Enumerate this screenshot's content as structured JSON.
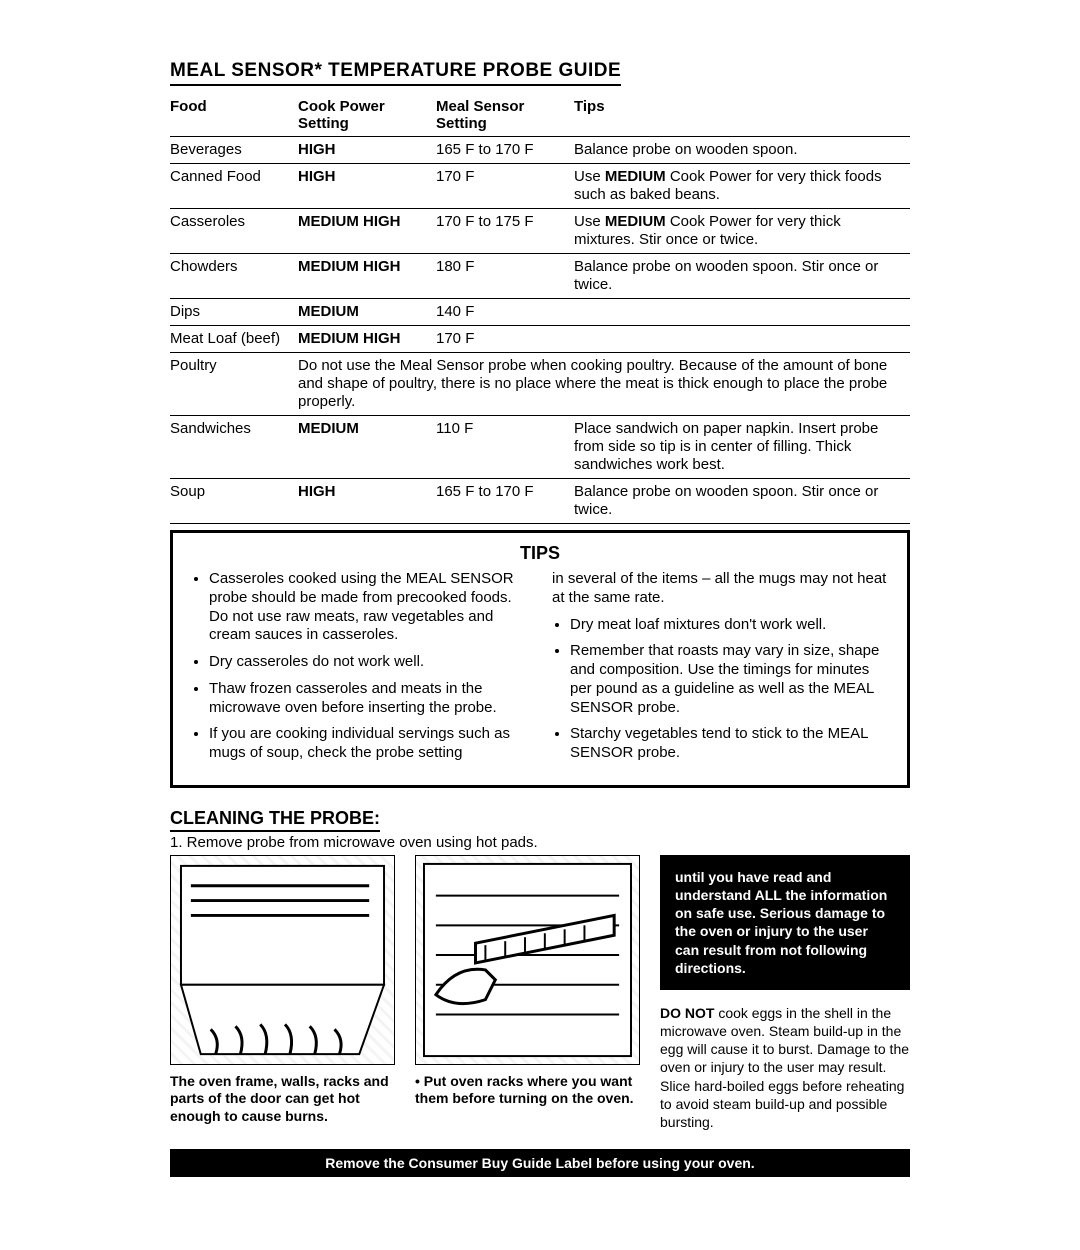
{
  "title": "MEAL SENSOR* TEMPERATURE PROBE GUIDE",
  "table": {
    "headers": [
      "Food",
      "Cook Power Setting",
      "Meal Sensor Setting",
      "Tips"
    ],
    "rows": [
      {
        "food": "Beverages",
        "power": "HIGH",
        "sensor": "165 F to 170 F",
        "tip": "Balance probe on wooden spoon."
      },
      {
        "food": "Canned Food",
        "power": "HIGH",
        "sensor": "170 F",
        "tip": "Use <b>MEDIUM</b> Cook Power for very thick foods such as baked beans."
      },
      {
        "food": "Casseroles",
        "power": "MEDIUM HIGH",
        "sensor": "170 F to 175 F",
        "tip": "Use <b>MEDIUM</b> Cook Power for very thick mixtures. Stir once or twice."
      },
      {
        "food": "Chowders",
        "power": "MEDIUM HIGH",
        "sensor": "180 F",
        "tip": "Balance probe on wooden spoon. Stir once or twice."
      },
      {
        "food": "Dips",
        "power": "MEDIUM",
        "sensor": "140 F",
        "tip": ""
      },
      {
        "food": "Meat Loaf (beef)",
        "power": "MEDIUM HIGH",
        "sensor": "170 F",
        "tip": ""
      },
      {
        "food": "Poultry",
        "full": "Do not use the Meal Sensor probe when cooking poultry. Because of the amount of bone and shape of poultry, there is no place where the meat is thick enough to place the probe properly."
      },
      {
        "food": "Sandwiches",
        "power": "MEDIUM",
        "sensor": "110 F",
        "tip": "Place sandwich on paper napkin. Insert probe from side so tip is in center of filling. Thick sandwiches work best."
      },
      {
        "food": "Soup",
        "power": "HIGH",
        "sensor": "165 F to 170 F",
        "tip": "Balance probe on wooden spoon. Stir once or twice."
      }
    ]
  },
  "tips": {
    "title": "TIPS",
    "left0": "Casseroles cooked using the MEAL SENSOR probe should be made from precooked foods. Do not use raw meats, raw vegetables and cream sauces in casseroles.",
    "left1": "Dry casseroles do not work well.",
    "left2": "Thaw frozen casseroles and meats in the microwave oven before inserting the probe.",
    "left3_a": "If you are cooking individual servings such as mugs of soup, check the probe setting",
    "left3_b": "in several of the items – all the mugs may not heat at the same rate.",
    "right0": "Dry meat loaf mixtures don't work well.",
    "right1": "Remember that roasts may vary in size, shape and composition. Use the timings for minutes per pound as a guideline as well as the MEAL SENSOR probe.",
    "right2": "Starchy vegetables tend to stick to the MEAL SENSOR probe."
  },
  "cleaning": {
    "title": "CLEANING THE PROBE:",
    "step1": "1. Remove probe from microwave oven using hot pads.",
    "caption_left": "The oven frame, walls, racks and parts of the door can get hot enough to cause burns.",
    "caption_mid": "• Put oven racks where you want them before turning on the oven.",
    "warn_box": "until you have read and understand ALL the information on safe use. Serious damage to the oven or injury to the user can result from not following directions.",
    "donot": "DO NOT cook eggs in the shell in the microwave oven. Steam build-up in the egg will cause it to burst. Damage to the oven or injury to the user may result. Slice hard-boiled eggs before reheating to avoid steam build-up and possible bursting."
  },
  "footer": "Remove the Consumer Buy Guide Label before using your oven."
}
